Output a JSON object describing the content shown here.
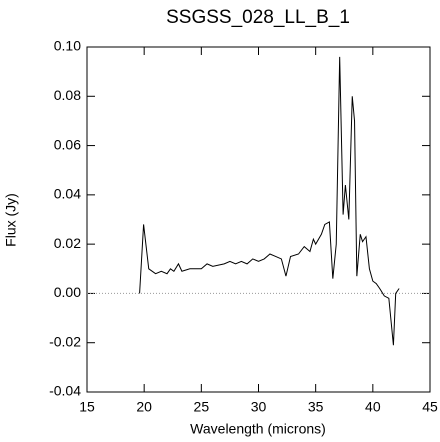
{
  "chart_data": {
    "type": "line",
    "title": "SSGSS_028_LL_B_1",
    "xlabel": "Wavelength (microns)",
    "ylabel": "Flux (Jy)",
    "color": "#000000",
    "x": [
      19.6,
      19.75,
      19.95,
      20.2,
      20.4,
      21.0,
      21.5,
      22.0,
      22.3,
      22.6,
      23.0,
      23.3,
      24.0,
      25.0,
      25.5,
      26.0,
      27.0,
      27.5,
      28.0,
      28.5,
      29.0,
      29.5,
      30.0,
      30.5,
      31.0,
      31.5,
      32.0,
      32.4,
      32.8,
      33.5,
      34.0,
      34.5,
      34.8,
      35.0,
      35.5,
      35.8,
      36.2,
      36.5,
      36.8,
      37.1,
      37.4,
      37.6,
      37.9,
      38.2,
      38.4,
      38.6,
      38.9,
      39.1,
      39.4,
      39.7,
      40.0,
      40.3,
      40.6,
      41.0,
      41.4,
      41.8,
      42.0,
      42.3
    ],
    "values": [
      0.0,
      0.012,
      0.028,
      0.018,
      0.01,
      0.008,
      0.009,
      0.008,
      0.01,
      0.009,
      0.012,
      0.009,
      0.01,
      0.01,
      0.012,
      0.011,
      0.012,
      0.013,
      0.012,
      0.013,
      0.012,
      0.014,
      0.013,
      0.014,
      0.016,
      0.015,
      0.014,
      0.007,
      0.015,
      0.016,
      0.019,
      0.017,
      0.022,
      0.02,
      0.024,
      0.028,
      0.029,
      0.006,
      0.02,
      0.096,
      0.032,
      0.044,
      0.03,
      0.08,
      0.07,
      0.007,
      0.024,
      0.021,
      0.023,
      0.01,
      0.005,
      0.004,
      0.002,
      -0.001,
      -0.002,
      -0.021,
      0.0,
      0.002
    ],
    "xlim": [
      15,
      45
    ],
    "xticks": [
      15,
      20,
      25,
      30,
      35,
      40,
      45
    ],
    "ylim": [
      -0.04,
      0.1
    ],
    "yticks": [
      -0.04,
      -0.02,
      {
        "value": 0,
        "label": "0.00"
      },
      0.02,
      0.04,
      0.06,
      0.08,
      {
        "value": 0.1,
        "label": "0.10"
      }
    ],
    "zero_line": true
  }
}
